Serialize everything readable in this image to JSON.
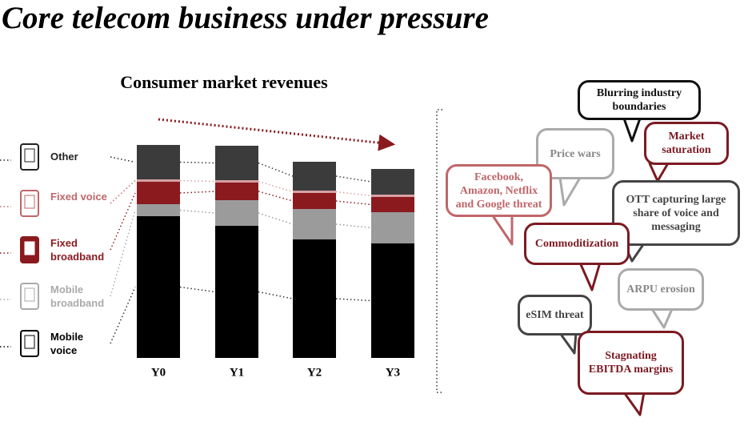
{
  "page_title": "Core telecom business under pressure",
  "chart_data": {
    "type": "stacked-bar",
    "title": "Consumer market revenues",
    "categories": [
      "Y0",
      "Y1",
      "Y2",
      "Y3"
    ],
    "series": [
      {
        "name": "Mobile voice",
        "color": "#000000",
        "values": [
          177,
          165,
          148,
          143
        ]
      },
      {
        "name": "Mobile broadband",
        "color": "#9b9b9b",
        "values": [
          15,
          32,
          38,
          39
        ]
      },
      {
        "name": "Fixed broadband",
        "color": "#8b1a1f",
        "values": [
          28,
          22,
          20,
          19
        ]
      },
      {
        "name": "Fixed voice",
        "color": "#d8a0a3",
        "values": [
          3,
          3,
          3,
          3
        ]
      },
      {
        "name": "Other",
        "color": "#3b3b3b",
        "values": [
          43,
          43,
          36,
          32
        ]
      }
    ]
  },
  "bubbles": [
    {
      "text": "Blurring industry boundaries"
    },
    {
      "text": "Price wars"
    },
    {
      "text": "Market saturation"
    },
    {
      "text": "Facebook, Amazon, Netflix and Google threat"
    },
    {
      "text": "OTT capturing large share of voice and messaging"
    },
    {
      "text": "Commoditization"
    },
    {
      "text": "ARPU erosion"
    },
    {
      "text": "eSIM threat"
    },
    {
      "text": "Stagnating EBITDA margins"
    }
  ]
}
